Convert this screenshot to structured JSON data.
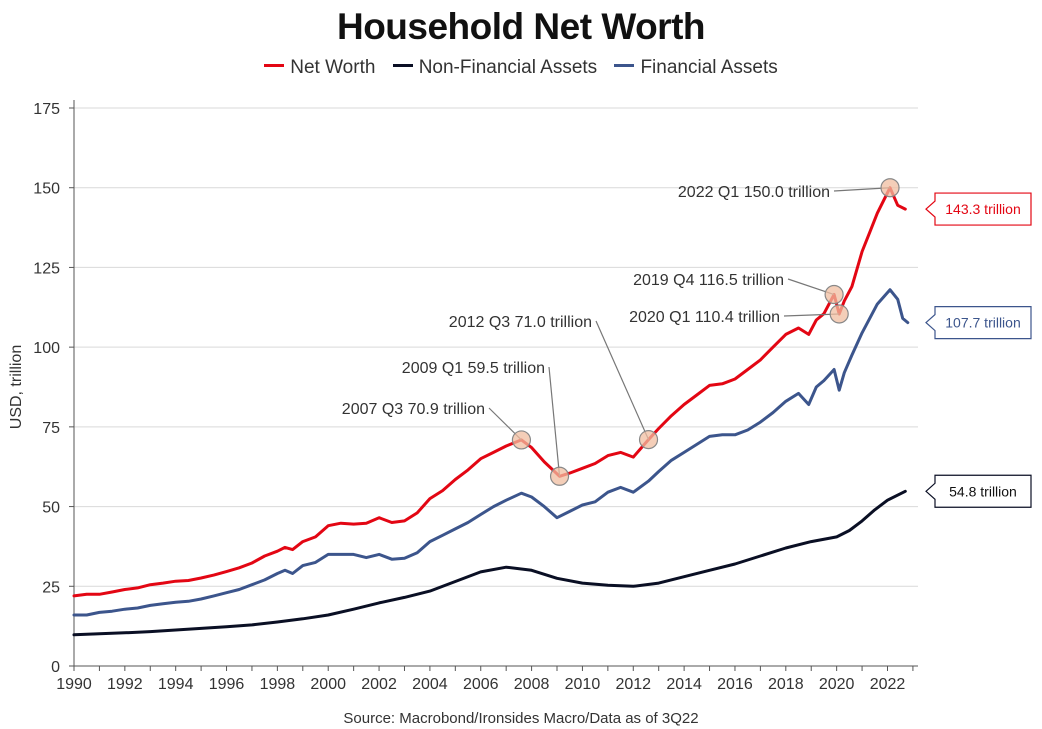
{
  "title": "Household Net Worth",
  "source": "Source: Macrobond/Ironsides Macro/Data as of 3Q22",
  "colors": {
    "net_worth": "#e30613",
    "non_financial": "#0a0f24",
    "financial": "#3c558c"
  },
  "chart_data": {
    "type": "line",
    "title": "Household Net Worth",
    "xlabel": "",
    "ylabel": "USD, trillion",
    "xlim": [
      1990,
      2023.2
    ],
    "ylim": [
      0,
      175
    ],
    "grid": true,
    "legend_position": "top",
    "x_ticks": [
      "1990",
      "1992",
      "1994",
      "1996",
      "1998",
      "2000",
      "2002",
      "2004",
      "2006",
      "2008",
      "2010",
      "2012",
      "2014",
      "2016",
      "2018",
      "2020",
      "2022"
    ],
    "y_ticks": [
      "0",
      "25",
      "50",
      "75",
      "100",
      "125",
      "150",
      "175"
    ],
    "series": [
      {
        "name": "Net Worth",
        "color": "#e30613",
        "points": [
          [
            1990,
            22
          ],
          [
            1990.5,
            22.5
          ],
          [
            1991,
            22.5
          ],
          [
            1991.5,
            23.2
          ],
          [
            1992,
            24
          ],
          [
            1992.5,
            24.5
          ],
          [
            1993,
            25.5
          ],
          [
            1993.5,
            26
          ],
          [
            1994,
            26.6
          ],
          [
            1994.5,
            26.8
          ],
          [
            1995,
            27.6
          ],
          [
            1995.5,
            28.5
          ],
          [
            1996,
            29.6
          ],
          [
            1996.5,
            30.8
          ],
          [
            1997,
            32.3
          ],
          [
            1997.5,
            34.5
          ],
          [
            1998,
            36
          ],
          [
            1998.3,
            37.2
          ],
          [
            1998.6,
            36.5
          ],
          [
            1999,
            39
          ],
          [
            1999.5,
            40.5
          ],
          [
            2000,
            44
          ],
          [
            2000.5,
            44.8
          ],
          [
            2001,
            44.5
          ],
          [
            2001.5,
            44.8
          ],
          [
            2002,
            46.5
          ],
          [
            2002.5,
            45
          ],
          [
            2003,
            45.5
          ],
          [
            2003.5,
            48
          ],
          [
            2004,
            52.5
          ],
          [
            2004.5,
            55
          ],
          [
            2005,
            58.5
          ],
          [
            2005.5,
            61.5
          ],
          [
            2006,
            65
          ],
          [
            2006.5,
            67
          ],
          [
            2007,
            69
          ],
          [
            2007.6,
            70.9
          ],
          [
            2008,
            68.5
          ],
          [
            2008.5,
            64
          ],
          [
            2009.1,
            59.5
          ],
          [
            2009.5,
            60.5
          ],
          [
            2010,
            62
          ],
          [
            2010.5,
            63.5
          ],
          [
            2011,
            66
          ],
          [
            2011.5,
            67
          ],
          [
            2012,
            65.5
          ],
          [
            2012.6,
            71
          ],
          [
            2013,
            74.5
          ],
          [
            2013.5,
            78.5
          ],
          [
            2014,
            82
          ],
          [
            2014.5,
            85
          ],
          [
            2015,
            88
          ],
          [
            2015.5,
            88.5
          ],
          [
            2016,
            90
          ],
          [
            2016.5,
            93
          ],
          [
            2017,
            96
          ],
          [
            2017.5,
            100
          ],
          [
            2018,
            104
          ],
          [
            2018.5,
            106
          ],
          [
            2018.9,
            104
          ],
          [
            2019.2,
            108.5
          ],
          [
            2019.5,
            110.5
          ],
          [
            2019.9,
            116.5
          ],
          [
            2020.1,
            110.4
          ],
          [
            2020.3,
            114.5
          ],
          [
            2020.6,
            119
          ],
          [
            2021,
            130
          ],
          [
            2021.3,
            136
          ],
          [
            2021.6,
            142
          ],
          [
            2022.1,
            150
          ],
          [
            2022.4,
            144.5
          ],
          [
            2022.7,
            143.3
          ]
        ]
      },
      {
        "name": "Non-Financial Assets",
        "color": "#0a0f24",
        "points": [
          [
            1990,
            9.8
          ],
          [
            1991,
            10.1
          ],
          [
            1992,
            10.4
          ],
          [
            1993,
            10.8
          ],
          [
            1994,
            11.3
          ],
          [
            1995,
            11.8
          ],
          [
            1996,
            12.3
          ],
          [
            1997,
            12.9
          ],
          [
            1998,
            13.8
          ],
          [
            1999,
            14.8
          ],
          [
            2000,
            16
          ],
          [
            2001,
            17.8
          ],
          [
            2002,
            19.8
          ],
          [
            2003,
            21.5
          ],
          [
            2004,
            23.5
          ],
          [
            2005,
            26.5
          ],
          [
            2006,
            29.5
          ],
          [
            2007,
            31
          ],
          [
            2008,
            30
          ],
          [
            2009,
            27.5
          ],
          [
            2010,
            26
          ],
          [
            2011,
            25.3
          ],
          [
            2012,
            25
          ],
          [
            2013,
            26
          ],
          [
            2014,
            28
          ],
          [
            2015,
            30
          ],
          [
            2016,
            32
          ],
          [
            2017,
            34.5
          ],
          [
            2018,
            37
          ],
          [
            2019,
            39
          ],
          [
            2020,
            40.5
          ],
          [
            2020.5,
            42.5
          ],
          [
            2021,
            45.5
          ],
          [
            2021.5,
            49
          ],
          [
            2022,
            52
          ],
          [
            2022.7,
            54.8
          ]
        ]
      },
      {
        "name": "Financial Assets",
        "color": "#3c558c",
        "points": [
          [
            1990,
            16
          ],
          [
            1990.5,
            16
          ],
          [
            1991,
            16.8
          ],
          [
            1991.5,
            17.2
          ],
          [
            1992,
            17.8
          ],
          [
            1992.5,
            18.2
          ],
          [
            1993,
            19
          ],
          [
            1993.5,
            19.5
          ],
          [
            1994,
            20
          ],
          [
            1994.5,
            20.3
          ],
          [
            1995,
            21
          ],
          [
            1995.5,
            22
          ],
          [
            1996,
            23
          ],
          [
            1996.5,
            24
          ],
          [
            1997,
            25.5
          ],
          [
            1997.5,
            27
          ],
          [
            1998,
            29
          ],
          [
            1998.3,
            30
          ],
          [
            1998.6,
            29
          ],
          [
            1999,
            31.5
          ],
          [
            1999.5,
            32.5
          ],
          [
            2000,
            35
          ],
          [
            2000.5,
            35
          ],
          [
            2001,
            35
          ],
          [
            2001.5,
            34
          ],
          [
            2002,
            35
          ],
          [
            2002.5,
            33.5
          ],
          [
            2003,
            33.8
          ],
          [
            2003.5,
            35.5
          ],
          [
            2004,
            39
          ],
          [
            2004.5,
            41
          ],
          [
            2005,
            43
          ],
          [
            2005.5,
            45
          ],
          [
            2006,
            47.5
          ],
          [
            2006.5,
            50
          ],
          [
            2007,
            52
          ],
          [
            2007.6,
            54.2
          ],
          [
            2008,
            53
          ],
          [
            2008.5,
            50
          ],
          [
            2009,
            46.5
          ],
          [
            2009.5,
            48.5
          ],
          [
            2010,
            50.5
          ],
          [
            2010.5,
            51.5
          ],
          [
            2011,
            54.5
          ],
          [
            2011.5,
            56
          ],
          [
            2012,
            54.5
          ],
          [
            2012.6,
            58
          ],
          [
            2013,
            61
          ],
          [
            2013.5,
            64.5
          ],
          [
            2014,
            67
          ],
          [
            2014.5,
            69.5
          ],
          [
            2015,
            72
          ],
          [
            2015.5,
            72.5
          ],
          [
            2016,
            72.5
          ],
          [
            2016.5,
            74
          ],
          [
            2017,
            76.5
          ],
          [
            2017.5,
            79.5
          ],
          [
            2018,
            83
          ],
          [
            2018.5,
            85.5
          ],
          [
            2018.9,
            82
          ],
          [
            2019.2,
            87.5
          ],
          [
            2019.5,
            89.5
          ],
          [
            2019.9,
            93
          ],
          [
            2020.1,
            86.5
          ],
          [
            2020.3,
            92
          ],
          [
            2020.6,
            97.5
          ],
          [
            2021,
            104.5
          ],
          [
            2021.3,
            109
          ],
          [
            2021.6,
            113.5
          ],
          [
            2022.1,
            118
          ],
          [
            2022.4,
            115
          ],
          [
            2022.6,
            109
          ],
          [
            2022.8,
            107.7
          ]
        ]
      }
    ],
    "annotations": [
      {
        "label": "2007 Q3 70.9 trillion",
        "x": 2007.6,
        "y": 70.9
      },
      {
        "label": "2009 Q1 59.5 trillion",
        "x": 2009.1,
        "y": 59.5
      },
      {
        "label": "2012 Q3 71.0 trillion",
        "x": 2012.6,
        "y": 71.0
      },
      {
        "label": "2019 Q4 116.5 trillion",
        "x": 2019.9,
        "y": 116.5
      },
      {
        "label": "2020 Q1 110.4 trillion",
        "x": 2020.1,
        "y": 110.4
      },
      {
        "label": "2022 Q1 150.0 trillion",
        "x": 2022.1,
        "y": 150.0
      }
    ],
    "end_labels": [
      {
        "label": "143.3 trillion",
        "series": "Net Worth",
        "value": 143.3
      },
      {
        "label": "107.7 trillion",
        "series": "Financial Assets",
        "value": 107.7
      },
      {
        "label": "54.8 trillion",
        "series": "Non-Financial Assets",
        "value": 54.8
      }
    ]
  }
}
